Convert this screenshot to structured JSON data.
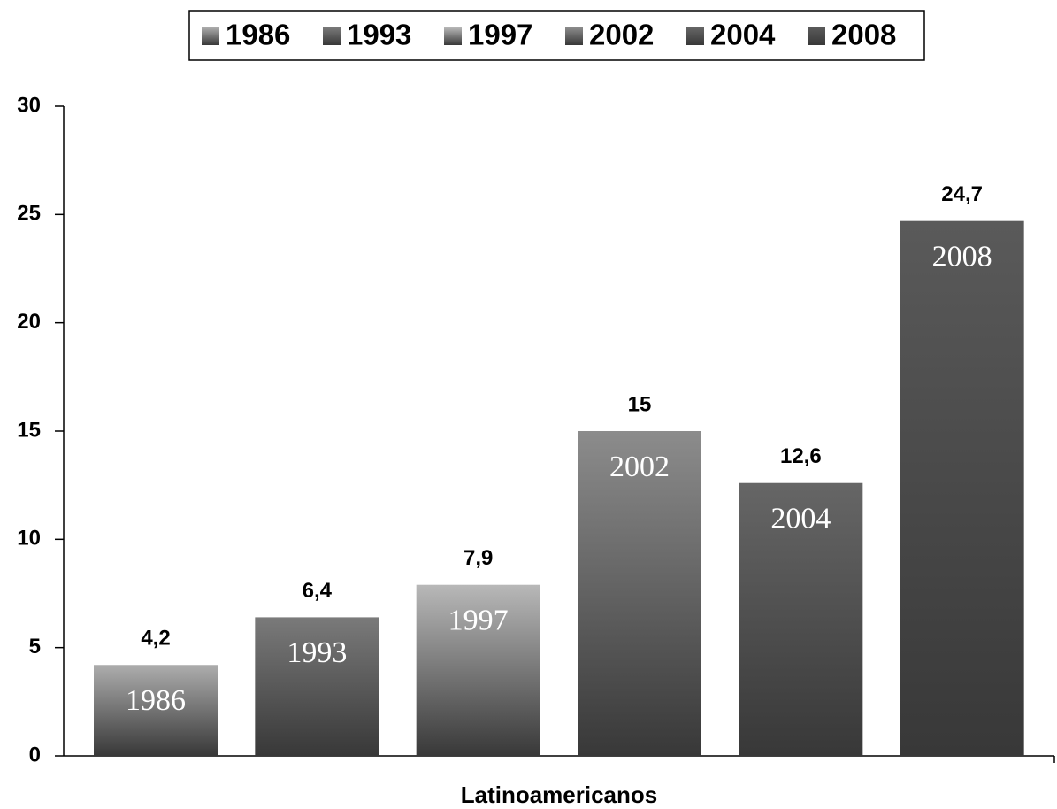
{
  "chart_data": {
    "type": "bar",
    "x_label": "Latinoamericanos",
    "categories": [
      "Latinoamericanos"
    ],
    "series": [
      {
        "name": "1986",
        "color": "#adadad",
        "values": [
          4.2
        ],
        "value_labels": [
          "4,2"
        ]
      },
      {
        "name": "1993",
        "color": "#7a7a7a",
        "values": [
          6.4
        ],
        "value_labels": [
          "6,4"
        ]
      },
      {
        "name": "1997",
        "color": "#b8b8b8",
        "values": [
          7.9
        ],
        "value_labels": [
          "7,9"
        ]
      },
      {
        "name": "2002",
        "color": "#8c8c8c",
        "values": [
          15
        ],
        "value_labels": [
          "15"
        ]
      },
      {
        "name": "2004",
        "color": "#666666",
        "values": [
          12.6
        ],
        "value_labels": [
          "12,6"
        ]
      },
      {
        "name": "2008",
        "color": "#5a5a5a",
        "values": [
          24.7
        ],
        "value_labels": [
          "24,7"
        ]
      }
    ],
    "ylim": [
      0,
      30
    ],
    "yticks": [
      0,
      5,
      10,
      15,
      20,
      25,
      30
    ],
    "legend": "top",
    "grid": false
  }
}
